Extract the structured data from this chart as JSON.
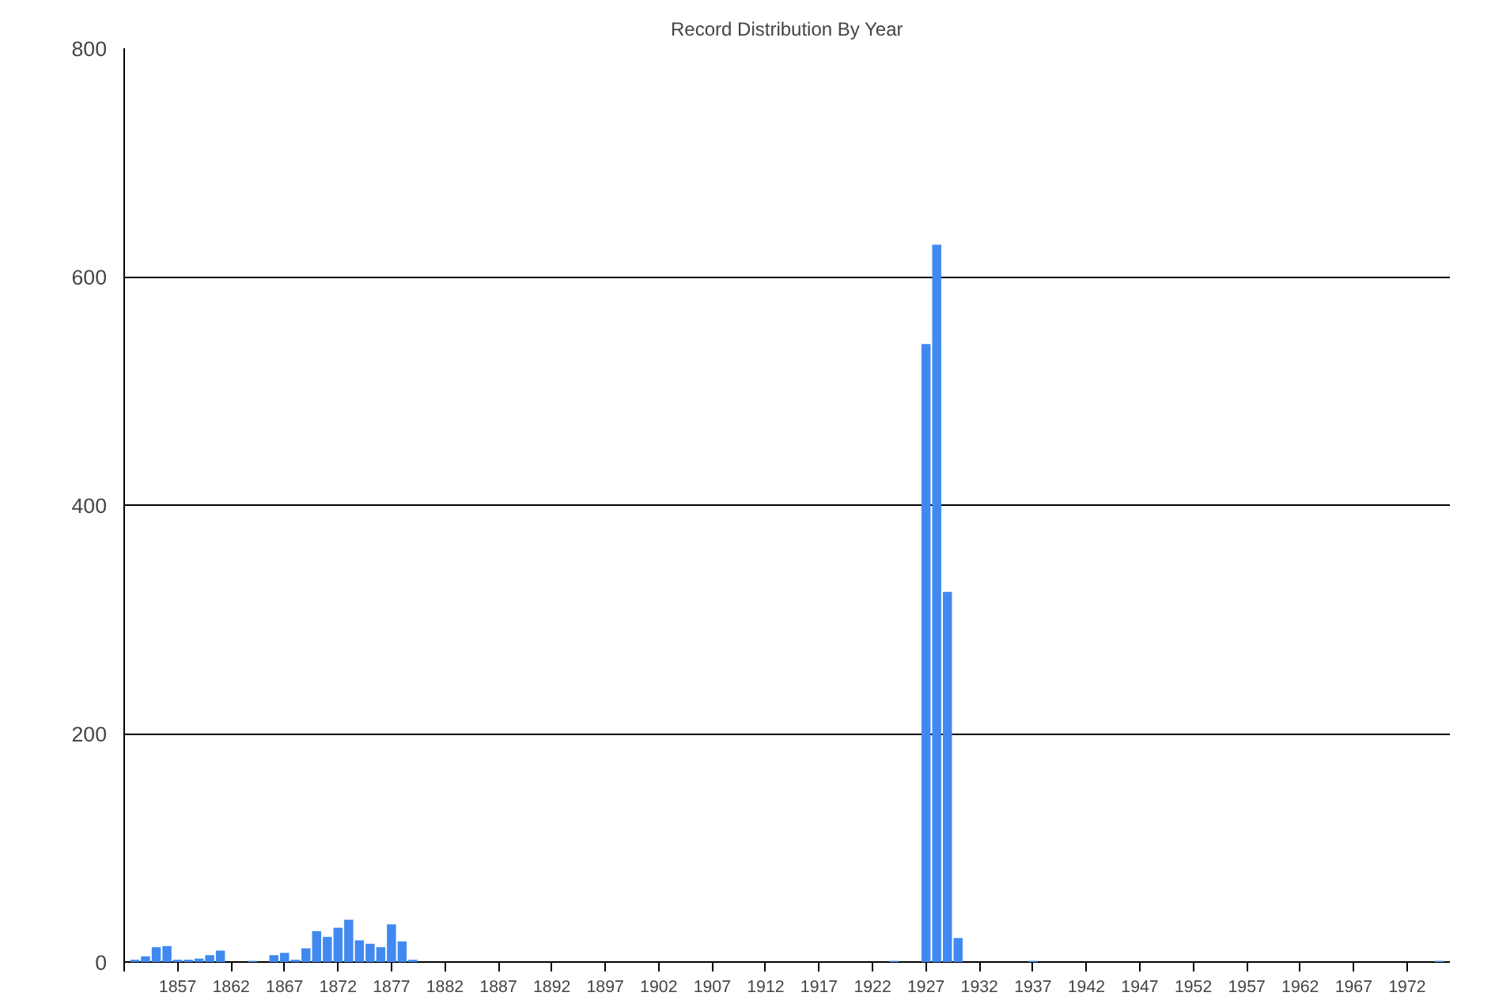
{
  "chart_data": {
    "type": "bar",
    "title": "Record Distribution By Year",
    "x": [
      1853,
      1854,
      1855,
      1856,
      1857,
      1858,
      1859,
      1860,
      1861,
      1864,
      1866,
      1867,
      1868,
      1869,
      1870,
      1871,
      1872,
      1873,
      1874,
      1875,
      1876,
      1877,
      1878,
      1879,
      1924,
      1927,
      1928,
      1929,
      1930,
      1937,
      1975
    ],
    "values": [
      2,
      5,
      13,
      14,
      2,
      2,
      3,
      6,
      10,
      1,
      6,
      8,
      2,
      12,
      27,
      22,
      30,
      37,
      19,
      16,
      13,
      33,
      18,
      2,
      1,
      541,
      628,
      324,
      21,
      1,
      1
    ],
    "color": "#4189f1",
    "xlim": [
      1852,
      1976
    ],
    "xticks": [
      {
        "value": 1852,
        "label": null
      },
      1857,
      1862,
      1867,
      1872,
      1877,
      1882,
      1887,
      1892,
      1897,
      1902,
      1907,
      1912,
      1917,
      1922,
      1927,
      1932,
      1937,
      1942,
      1947,
      1952,
      1957,
      1962,
      1967,
      1972
    ],
    "ylim": [
      0,
      800
    ],
    "yticks": [
      0,
      200,
      400,
      600,
      800
    ],
    "grid": "y"
  }
}
